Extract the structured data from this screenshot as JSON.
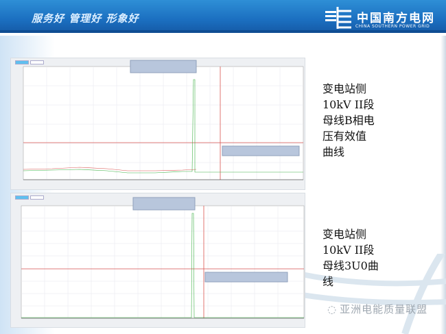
{
  "header": {
    "slogan": "服务好  管理好  形象好",
    "logo_cn": "中国南方电网",
    "logo_en": "CHINA SOUTHERN POWER GRID"
  },
  "captions": [
    {
      "lines": [
        "变电站侧",
        "10kV II段",
        "母线B相电",
        "压有效值",
        "曲线"
      ]
    },
    {
      "lines": [
        "变电站侧",
        "10kV II段",
        "母线3U0曲",
        "线"
      ]
    }
  ],
  "watermark": "亚洲电能质量联盟",
  "colors": {
    "banner": "#1b6fc0",
    "series_a": "#d9534f",
    "series_b": "#3cb043"
  }
}
